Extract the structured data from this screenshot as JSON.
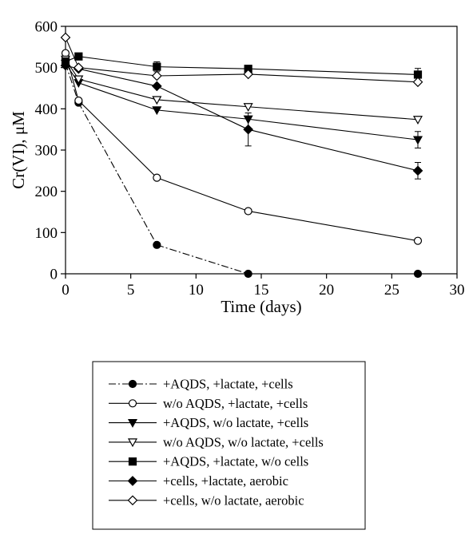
{
  "chart_data": {
    "type": "line",
    "title": "",
    "xlabel": "Time (days)",
    "ylabel": "Cr(VI), μM",
    "xlim": [
      0,
      30
    ],
    "ylim": [
      0,
      600
    ],
    "xticks": [
      0,
      5,
      10,
      15,
      20,
      25,
      30
    ],
    "yticks": [
      0,
      100,
      200,
      300,
      400,
      500,
      600
    ],
    "grid": false,
    "legend_position": "below plot",
    "series": [
      {
        "name": "+AQDS, +lactate, +cells",
        "marker": "filled-circle",
        "line_style": "dash-dot",
        "x": [
          0,
          1,
          7,
          14,
          27
        ],
        "y": [
          510,
          415,
          70,
          0,
          0
        ],
        "error": [
          0,
          0,
          0,
          0,
          0
        ]
      },
      {
        "name": "w/o AQDS, +lactate, +cells",
        "marker": "open-circle",
        "line_style": "solid",
        "x": [
          0,
          1,
          7,
          14,
          27
        ],
        "y": [
          535,
          420,
          233,
          152,
          80
        ],
        "error": [
          0,
          0,
          0,
          0,
          0
        ]
      },
      {
        "name": "+AQDS, w/o lactate, +cells",
        "marker": "filled-triangle-down",
        "line_style": "solid",
        "x": [
          0,
          1,
          7,
          14,
          27
        ],
        "y": [
          510,
          463,
          397,
          375,
          325
        ],
        "error": [
          0,
          0,
          0,
          0,
          20
        ]
      },
      {
        "name": "w/o AQDS, w/o lactate, +cells",
        "marker": "open-triangle-down",
        "line_style": "solid",
        "x": [
          0,
          1,
          7,
          14,
          27
        ],
        "y": [
          520,
          472,
          422,
          405,
          374
        ],
        "error": [
          0,
          0,
          0,
          0,
          0
        ]
      },
      {
        "name": "+AQDS, +lactate, w/o cells",
        "marker": "filled-square",
        "line_style": "solid",
        "x": [
          0,
          1,
          7,
          14,
          27
        ],
        "y": [
          515,
          527,
          502,
          497,
          483
        ],
        "error": [
          0,
          0,
          12,
          0,
          15
        ]
      },
      {
        "name": "+cells, +lactate, aerobic",
        "marker": "filled-diamond",
        "line_style": "solid",
        "x": [
          0,
          1,
          7,
          14,
          27
        ],
        "y": [
          505,
          497,
          455,
          350,
          250
        ],
        "error": [
          0,
          0,
          0,
          40,
          20
        ]
      },
      {
        "name": "+cells, w/o lactate, aerobic",
        "marker": "open-diamond",
        "line_style": "solid",
        "x": [
          0,
          1,
          7,
          14,
          27
        ],
        "y": [
          573,
          500,
          480,
          484,
          465
        ],
        "error": [
          0,
          0,
          0,
          0,
          0
        ]
      }
    ]
  }
}
